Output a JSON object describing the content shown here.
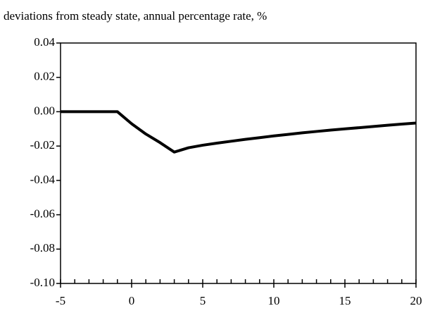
{
  "chart_data": {
    "type": "line",
    "title": "deviations from steady state, annual percentage rate, %",
    "x": [
      -5,
      -4,
      -3,
      -2,
      -1,
      0,
      1,
      2,
      3,
      4,
      5,
      6,
      7,
      8,
      9,
      10,
      11,
      12,
      13,
      14,
      15,
      16,
      17,
      18,
      19,
      20
    ],
    "series": [
      {
        "color": "#000000",
        "values": [
          0,
          0,
          0,
          0,
          0,
          -0.007,
          -0.013,
          -0.018,
          -0.0235,
          -0.021,
          -0.0195,
          -0.0183,
          -0.0172,
          -0.0161,
          -0.0151,
          -0.0141,
          -0.0132,
          -0.0123,
          -0.0115,
          -0.0107,
          -0.01,
          -0.0093,
          -0.0086,
          -0.0079,
          -0.0072,
          -0.0066
        ]
      }
    ],
    "xlim": [
      -5,
      20
    ],
    "xticks": [
      -5,
      0,
      5,
      10,
      15,
      20
    ],
    "ylim": [
      -0.1,
      0.04
    ],
    "yticks": [
      {
        "value": 0.04,
        "label": "0.04"
      },
      {
        "value": 0.02,
        "label": "0.02"
      },
      {
        "value": 0,
        "label": "0.00"
      },
      {
        "value": -0.02,
        "label": "-0.02"
      },
      {
        "value": -0.04,
        "label": "-0.04"
      },
      {
        "value": -0.06,
        "label": "-0.06"
      },
      {
        "value": -0.08,
        "label": "-0.08"
      },
      {
        "value": -0.1,
        "label": "-0.10"
      }
    ],
    "grid": false
  }
}
